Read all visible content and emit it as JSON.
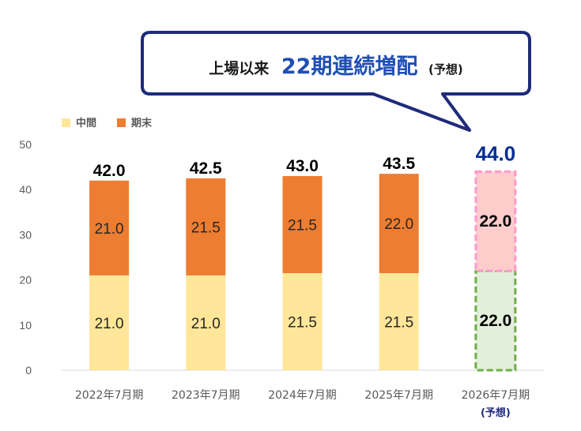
{
  "callout": {
    "prefix": "上場以来",
    "highlight": "22期連続増配",
    "suffix": "(予想)"
  },
  "colors": {
    "interim": "#FFE699",
    "final": "#ED7D31",
    "forecast_final_fill": "#FFCCCC",
    "forecast_final_border": "#FF99CC",
    "forecast_interim_fill": "#E2EFDA",
    "forecast_interim_border": "#70AD47",
    "forecast_total_text": "#002D94",
    "callout_border": "#1F2B7A",
    "callout_highlight": "#1F4EB4"
  },
  "chart_data": {
    "type": "bar",
    "stacked": true,
    "categories": [
      "2022年7月期",
      "2023年7月期",
      "2024年7月期",
      "2025年7月期",
      "2026年7月期"
    ],
    "category_notes": [
      "",
      "",
      "",
      "",
      "(予想)"
    ],
    "series": [
      {
        "name": "中間",
        "values": [
          21.0,
          21.0,
          21.5,
          21.5,
          22.0
        ],
        "labels": [
          "21.0",
          "21.0",
          "21.5",
          "21.5",
          "22.0"
        ]
      },
      {
        "name": "期末",
        "values": [
          21.0,
          21.5,
          21.5,
          22.0,
          22.0
        ],
        "labels": [
          "21.0",
          "21.5",
          "21.5",
          "22.0",
          "22.0"
        ]
      }
    ],
    "totals": [
      "42.0",
      "42.5",
      "43.0",
      "43.5",
      "44.0"
    ],
    "forecast": [
      false,
      false,
      false,
      false,
      true
    ],
    "ylim": [
      0,
      50
    ],
    "yticks": [
      "0",
      "10",
      "20",
      "30",
      "40",
      "50"
    ],
    "grid": false,
    "legend": "top-left"
  }
}
